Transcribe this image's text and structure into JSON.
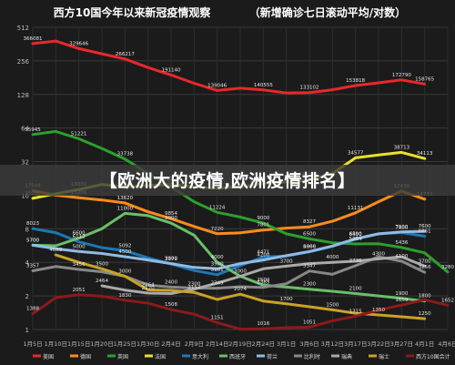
{
  "chart_data": {
    "type": "line",
    "title": "西方10国今年以来新冠疫情观察",
    "subtitle": "（新增确诊七日滚动平均/对数）",
    "yscale": "log",
    "yticks": [
      1,
      2,
      4,
      8,
      16,
      32,
      64,
      128,
      256,
      512
    ],
    "ytick_labels": [
      "1",
      "2",
      "4",
      "8",
      "16",
      "32",
      "64",
      "128",
      "256",
      "512"
    ],
    "ylim": [
      1,
      512
    ],
    "grid": true,
    "legend_position": "bottom",
    "x": [
      "1月5日",
      "1月10日",
      "1月15日",
      "1月20日",
      "1月25日",
      "1月30日",
      "2月4日",
      "2月9日",
      "2月14日",
      "2月19日",
      "2月24日",
      "3月1日",
      "3月6日",
      "3月12日",
      "3月17日",
      "3月22日",
      "3月27日",
      "4月1日",
      "4月6日"
    ],
    "series": [
      {
        "name": "美国",
        "color": "#e8282b",
        "values": [
          366081,
          385189,
          329646,
          296547,
          266217,
          223329,
          191140,
          161351,
          139046,
          145670,
          140555,
          132050,
          133102,
          141075,
          153818,
          162620,
          172790,
          158765,
          null
        ]
      },
      {
        "name": "德国",
        "color": "#ff8c1a",
        "values": [
          17544,
          16000,
          15200,
          14500,
          13620,
          11363,
          9854,
          8393,
          7220,
          7355,
          7801,
          8114,
          8327,
          9344,
          11131,
          14000,
          17430,
          14733,
          null
        ]
      },
      {
        "name": "英国",
        "color": "#2ca02c",
        "values": [
          55945,
          59653,
          51221,
          42026,
          33738,
          25000,
          19000,
          14000,
          11224,
          10188,
          9000,
          7200,
          6500,
          5995,
          5854,
          5866,
          5436,
          4869,
          3280
        ]
      },
      {
        "name": "法国",
        "color": "#e9e12b",
        "values": [
          15000,
          16500,
          18000,
          20000,
          19000,
          19500,
          20000,
          19000,
          18500,
          19000,
          20500,
          21000,
          22000,
          25000,
          34577,
          36650,
          38713,
          34113,
          null
        ]
      },
      {
        "name": "意大利",
        "color": "#1f77b4",
        "values": [
          8023,
          7383,
          6112,
          5413,
          5092,
          4390,
          3879,
          3381,
          3101,
          3732,
          4471,
          4548,
          4966,
          5555,
          6450,
          7204,
          7400,
          6861,
          null
        ]
      },
      {
        "name": "西班牙",
        "color": "#6abf69",
        "values": [
          5700,
          5638,
          6600,
          8000,
          11000,
          10500,
          9000,
          7000,
          4000,
          3000,
          2500,
          2400,
          2300,
          2200,
          2100,
          2000,
          1900,
          1800,
          null
        ]
      },
      {
        "name": "荷兰",
        "color": "#8fbce6",
        "values": [
          5700,
          5300,
          5000,
          4800,
          4500,
          4200,
          3900,
          3600,
          3500,
          3900,
          4200,
          4600,
          5000,
          5600,
          6500,
          7200,
          7500,
          7600,
          null
        ]
      },
      {
        "name": "比利时",
        "color": "#888888",
        "values": [
          3357,
          3670,
          3456,
          3293,
          3000,
          2504,
          2400,
          2350,
          2349,
          2418,
          2385,
          2575,
          3347,
          3122,
          3735,
          4489,
          4100,
          3256,
          null
        ]
      },
      {
        "name": "瑞典",
        "color": "#aaaaaa",
        "values": [
          null,
          null,
          null,
          2464,
          2254,
          2120,
          2100,
          2300,
          2600,
          3000,
          3500,
          3700,
          3900,
          4000,
          4100,
          4300,
          4489,
          3700,
          null
        ]
      },
      {
        "name": "瑞士",
        "color": "#c9a227",
        "values": [
          null,
          4659,
          4000,
          3500,
          3000,
          2264,
          2244,
          2152,
          1860,
          2074,
          1800,
          1700,
          1600,
          1500,
          1400,
          1350,
          1300,
          1250,
          null
        ]
      },
      {
        "name": "西方10国合计",
        "color": "#8b1a1a",
        "values": [
          1388,
          1932,
          2051,
          1989,
          1830,
          1720,
          1508,
          1371,
          1151,
          1007,
          1016,
          1039,
          1051,
          1196,
          1315,
          1491,
          1659,
          1847,
          1652
        ]
      }
    ]
  },
  "overlay": {
    "banner_text": "【欧洲大的疫情,欧洲疫情排名】"
  }
}
